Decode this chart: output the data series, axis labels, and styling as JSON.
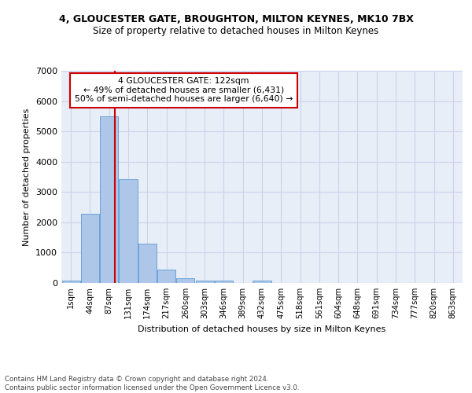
{
  "title1": "4, GLOUCESTER GATE, BROUGHTON, MILTON KEYNES, MK10 7BX",
  "title2": "Size of property relative to detached houses in Milton Keynes",
  "xlabel": "Distribution of detached houses by size in Milton Keynes",
  "ylabel": "Number of detached properties",
  "bin_labels": [
    "1sqm",
    "44sqm",
    "87sqm",
    "131sqm",
    "174sqm",
    "217sqm",
    "260sqm",
    "303sqm",
    "346sqm",
    "389sqm",
    "432sqm",
    "475sqm",
    "518sqm",
    "561sqm",
    "604sqm",
    "648sqm",
    "691sqm",
    "734sqm",
    "777sqm",
    "820sqm",
    "863sqm"
  ],
  "bar_heights": [
    75,
    2270,
    5500,
    3420,
    1290,
    450,
    160,
    75,
    75,
    0,
    75,
    0,
    0,
    0,
    0,
    0,
    0,
    0,
    0,
    0,
    0
  ],
  "bar_color": "#aec6e8",
  "bar_edge_color": "#5b9bd5",
  "grid_color": "#c8d4e8",
  "background_color": "#e8eef8",
  "annotation_box_text": "4 GLOUCESTER GATE: 122sqm\n← 49% of detached houses are smaller (6,431)\n50% of semi-detached houses are larger (6,640) →",
  "annotation_box_color": "#ffffff",
  "annotation_box_edge_color": "#cc0000",
  "vline_color": "#cc0000",
  "ylim": [
    0,
    7000
  ],
  "yticks": [
    0,
    1000,
    2000,
    3000,
    4000,
    5000,
    6000,
    7000
  ],
  "footer_text": "Contains HM Land Registry data © Crown copyright and database right 2024.\nContains public sector information licensed under the Open Government Licence v3.0.",
  "bin_edges": [
    1,
    44,
    87,
    131,
    174,
    217,
    260,
    303,
    346,
    389,
    432,
    475,
    518,
    561,
    604,
    648,
    691,
    734,
    777,
    820,
    863
  ],
  "bin_width": 43,
  "vline_x_bin": 2,
  "title1_fontsize": 9,
  "title2_fontsize": 8.5
}
